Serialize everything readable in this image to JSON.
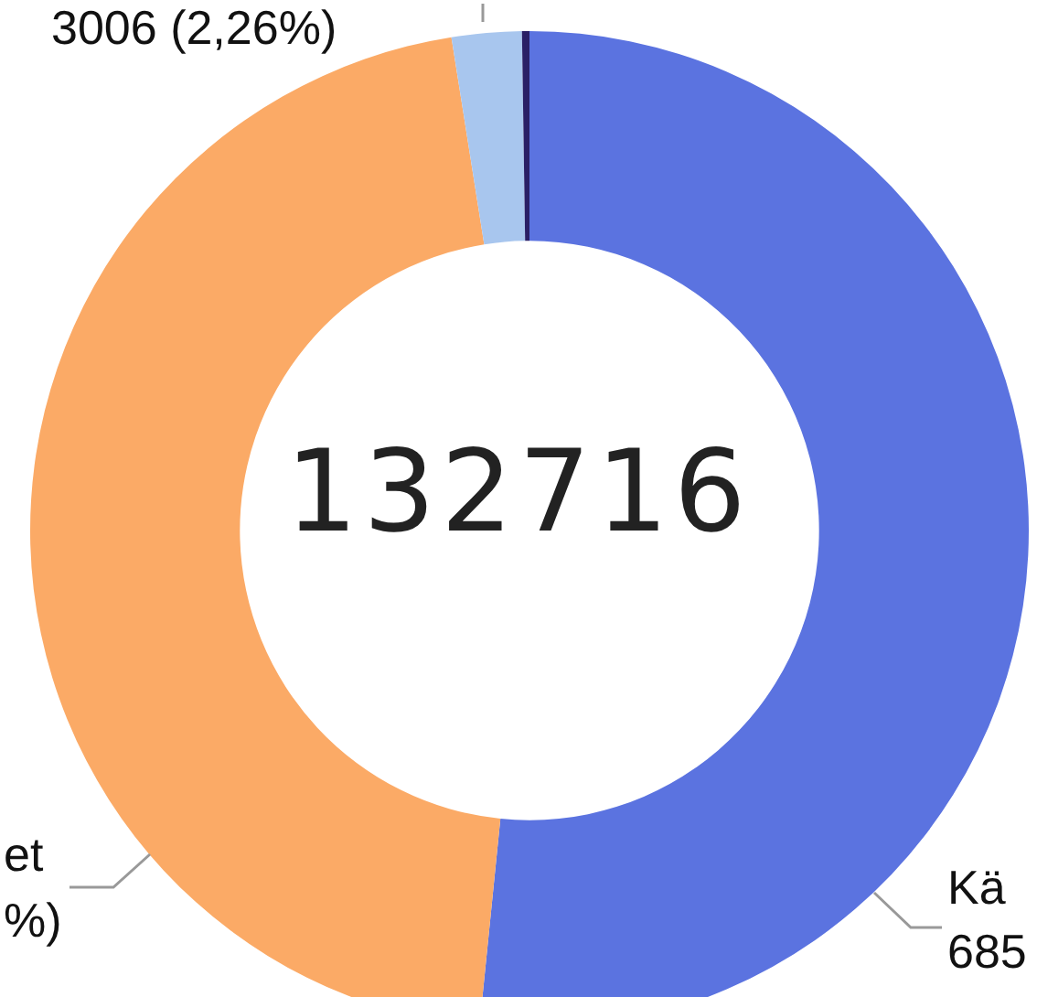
{
  "chart_data": {
    "type": "donut",
    "title": "132716",
    "categories": [
      null,
      null,
      null,
      null
    ],
    "values": [
      51.6,
      45.9,
      2.26,
      0.24
    ],
    "colors": [
      "#5b73e0",
      "#fbaa66",
      "#a8c6ee",
      "#2a1f66"
    ],
    "annotations": [
      "3006 (2,26%)",
      "Kä",
      "685",
      "et",
      "%)"
    ]
  }
}
